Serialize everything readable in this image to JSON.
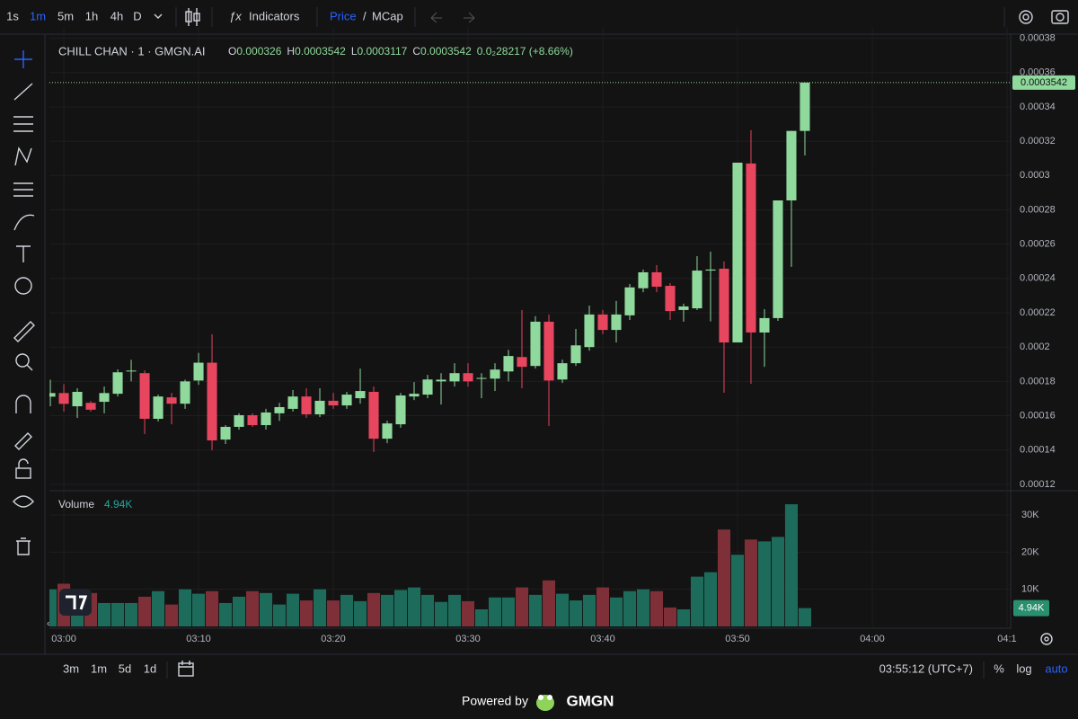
{
  "toolbar": {
    "intervals": [
      "1s",
      "1m",
      "5m",
      "1h",
      "4h",
      "D"
    ],
    "indicators": "Indicators",
    "price": "Price",
    "slash": "/",
    "mcap": "MCap"
  },
  "chart_data": {
    "type": "candlestick",
    "title": "CHILL CHAN · 1 · GMGN.AI",
    "ohlc_legend": [
      {
        "prefix": "O",
        "value": 0.000326
      },
      {
        "prefix": "H",
        "value": 0.0003542
      },
      {
        "prefix": "L",
        "value": 0.0003117
      },
      {
        "prefix": "C",
        "value": 0.0003542
      }
    ],
    "change": "0.0₂28217 (+8.66%)",
    "x": [
      -1,
      0,
      1,
      2,
      3,
      4,
      5,
      6,
      7,
      8,
      9,
      10,
      11,
      12,
      13,
      14,
      15,
      16,
      17,
      18,
      19,
      20,
      21,
      22,
      23,
      24,
      25,
      26,
      27,
      28,
      29,
      30,
      31,
      32,
      33,
      34,
      35,
      36,
      37,
      38,
      39,
      40,
      41,
      42,
      43,
      44,
      45,
      46,
      47,
      48,
      49,
      50,
      51,
      52,
      53,
      54,
      55
    ],
    "open": [
      0.0001711,
      0.0001732,
      0.0001655,
      0.0001675,
      0.0001681,
      0.0001728,
      0.0001858,
      0.0001848,
      0.0001582,
      0.0001707,
      0.000167,
      0.0001805,
      0.0001909,
      0.0001461,
      0.0001535,
      0.0001603,
      0.0001545,
      0.0001614,
      0.000164,
      0.0001712,
      0.0001608,
      0.0001687,
      0.000166,
      0.0001702,
      0.0001739,
      0.0001466,
      0.000155,
      0.0001712,
      0.0001723,
      0.00018,
      0.00018,
      0.0001848,
      0.0001816,
      0.0001816,
      0.0001858,
      0.0001942,
      0.000189,
      0.0002148,
      0.0001811,
      0.0001906,
      0.0002,
      0.000219,
      0.00021,
      0.0002185,
      0.0002343,
      0.0002436,
      0.0002357,
      0.0002216,
      0.0002226,
      0.0002446,
      0.0002457,
      0.0002027,
      0.000307,
      0.0002085,
      0.0002169,
      0.0002855,
      0.000326
    ],
    "high": [
      0.000181,
      0.0001784,
      0.000176,
      0.0001686,
      0.000177,
      0.000187,
      0.0001926,
      0.0001864,
      0.0001723,
      0.0001733,
      0.000181,
      0.0001966,
      0.0002074,
      0.0001545,
      0.0001614,
      0.0001614,
      0.000164,
      0.0001675,
      0.000175,
      0.000176,
      0.000176,
      0.0001733,
      0.0001739,
      0.0001875,
      0.000177,
      0.0001571,
      0.0001733,
      0.0001796,
      0.0001838,
      0.0001848,
      0.0001906,
      0.0001906,
      0.0001848,
      0.0001906,
      0.0001984,
      0.0002216,
      0.000218,
      0.000219,
      0.0001927,
      0.0002106,
      0.0002242,
      0.0002216,
      0.0002269,
      0.0002368,
      0.0002452,
      0.0002478,
      0.0002373,
      0.0002253,
      0.000253,
      0.0002556,
      0.0002499,
      0.0003075,
      0.0003264,
      0.0002221,
      0.0002855,
      0.000326,
      0.0003542
    ],
    "low": [
      0.0001655,
      0.0001624,
      0.0001587,
      0.0001624,
      0.0001614,
      0.0001712,
      0.00018,
      0.0001493,
      0.0001566,
      0.000155,
      0.000164,
      0.000178,
      0.0001399,
      0.0001435,
      0.0001519,
      0.0001535,
      0.0001519,
      0.000157,
      0.0001624,
      0.0001587,
      0.0001592,
      0.000164,
      0.000164,
      0.000167,
      0.0001388,
      0.000144,
      0.000153,
      0.0001691,
      0.0001702,
      0.0001665,
      0.000177,
      0.000177,
      0.0001702,
      0.0001744,
      0.00018,
      0.000176,
      0.0001875,
      0.000154,
      0.0001791,
      0.000189,
      0.0001979,
      0.0002075,
      0.0002027,
      0.0002158,
      0.000232,
      0.000232,
      0.0002158,
      0.0002148,
      0.0002216,
      0.000215,
      0.0001734,
      0.0002027,
      0.0001786,
      0.0001885,
      0.0002153,
      0.0002468,
      0.0003117
    ],
    "close": [
      0.0001732,
      0.0001669,
      0.0001739,
      0.0001635,
      0.0001732,
      0.0001853,
      0.0001863,
      0.0001582,
      0.0001712,
      0.000167,
      0.00018,
      0.0001909,
      0.0001456,
      0.0001535,
      0.0001603,
      0.0001545,
      0.0001619,
      0.000165,
      0.0001712,
      0.0001608,
      0.0001687,
      0.000166,
      0.0001723,
      0.0001744,
      0.0001466,
      0.0001555,
      0.0001718,
      0.0001728,
      0.0001811,
      0.000181,
      0.0001848,
      0.00018,
      0.000182,
      0.0001869,
      0.0001948,
      0.0001885,
      0.0002148,
      0.0001805,
      0.0001906,
      0.000201,
      0.000219,
      0.00021,
      0.000219,
      0.0002348,
      0.0002436,
      0.0002352,
      0.000221,
      0.0002237,
      0.0002446,
      0.0002452,
      0.0002027,
      0.0003075,
      0.0002085,
      0.0002169,
      0.0002855,
      0.000326,
      0.0003542
    ],
    "up_color": "#8fd99c",
    "down_color": "#e8455f",
    "xlim": [
      -1.07,
      70.27
    ],
    "xticks": [
      {
        "value": 0,
        "label": "03:00"
      },
      {
        "value": 10,
        "label": "03:10"
      },
      {
        "value": 20,
        "label": "03:20"
      },
      {
        "value": 30,
        "label": "03:30"
      },
      {
        "value": 40,
        "label": "03:40"
      },
      {
        "value": 50,
        "label": "03:50"
      },
      {
        "value": 60,
        "label": "04:00"
      },
      {
        "value": 70,
        "label": "04:1"
      }
    ],
    "ylim": [
      0.0001168,
      0.0003866
    ],
    "yticks": [
      0.00012,
      0.00014,
      0.00016,
      0.00018,
      0.0002,
      0.00022,
      0.00024,
      0.00026,
      0.00028,
      0.0003,
      0.00032,
      0.00034,
      0.00036,
      0.00038
    ],
    "grid": true,
    "volume": {
      "name": "Volume",
      "values": [
        10000,
        11500,
        10000,
        9000,
        6300,
        6300,
        6300,
        8000,
        9500,
        5900,
        10000,
        8800,
        9500,
        6300,
        8000,
        9500,
        9000,
        5900,
        8800,
        7000,
        10000,
        7000,
        8500,
        6800,
        9000,
        8500,
        9800,
        10500,
        8500,
        6600,
        8500,
        6800,
        4600,
        7800,
        7800,
        10500,
        8500,
        12400,
        8800,
        7000,
        8500,
        10500,
        7800,
        9500,
        10000,
        9500,
        5100,
        4600,
        13400,
        14600,
        26100,
        19300,
        23400,
        22900,
        24100,
        32900,
        4940
      ],
      "value_labels": [
        null,
        null,
        null,
        null,
        null,
        null,
        null,
        null,
        null,
        null,
        null,
        null,
        null,
        null,
        null,
        null,
        null,
        null,
        null,
        null,
        null,
        null,
        null,
        null,
        null,
        null,
        null,
        null,
        null,
        null,
        null,
        null,
        null,
        null,
        null,
        null,
        null,
        null,
        null,
        null,
        null,
        null,
        null,
        null,
        null,
        null,
        null,
        null,
        null,
        null,
        null,
        null,
        null,
        null,
        null,
        null,
        "4.94K"
      ],
      "up_color": "#1d6b5b",
      "down_color": "#7e2f37",
      "ylim": [
        0,
        36300
      ],
      "yticks": [
        {
          "value": 10000,
          "label": "10K"
        },
        {
          "value": 20000,
          "label": "20K"
        },
        {
          "value": 30000,
          "label": "30K"
        }
      ]
    }
  },
  "footer": {
    "ranges": [
      "3m",
      "1m",
      "5d",
      "1d"
    ],
    "time": "03:55:12 (UTC+7)",
    "percent": "%",
    "log": "log",
    "auto": "auto",
    "powered": "Powered by",
    "brand": "GMGN"
  }
}
